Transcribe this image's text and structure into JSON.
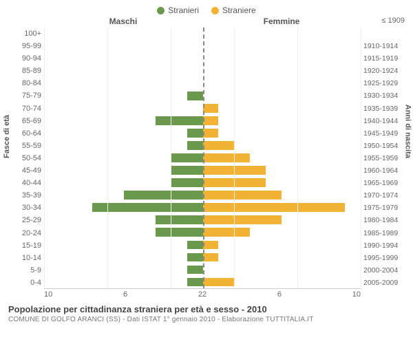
{
  "chart": {
    "type": "population-pyramid",
    "legend": {
      "male": {
        "label": "Stranieri",
        "color": "#6a994e"
      },
      "female": {
        "label": "Straniere",
        "color": "#f2b233"
      }
    },
    "column_headers": {
      "left": "Maschi",
      "right": "Femmine"
    },
    "left_axis_title": "Fasce di età",
    "right_axis_title": "Anni di nascita",
    "xlim": [
      0,
      10
    ],
    "x_ticks_left": [
      "10",
      "6",
      "2"
    ],
    "x_ticks_right": [
      "2",
      "6",
      "10"
    ],
    "grid_color": "#eeeeee",
    "center_line_color": "#888888",
    "background_color": "#ffffff",
    "bar_height_ratio": 0.7,
    "age_groups": [
      "100+",
      "95-99",
      "90-94",
      "85-89",
      "80-84",
      "75-79",
      "70-74",
      "65-69",
      "60-64",
      "55-59",
      "50-54",
      "45-49",
      "40-44",
      "35-39",
      "30-34",
      "25-29",
      "20-24",
      "15-19",
      "10-14",
      "5-9",
      "0-4"
    ],
    "birth_years": [
      "≤ 1909",
      "1910-1914",
      "1915-1919",
      "1920-1924",
      "1925-1929",
      "1930-1934",
      "1935-1939",
      "1940-1944",
      "1945-1949",
      "1950-1954",
      "1955-1959",
      "1960-1964",
      "1965-1969",
      "1970-1974",
      "1975-1979",
      "1980-1984",
      "1985-1989",
      "1990-1994",
      "1995-1999",
      "2000-2004",
      "2005-2009"
    ],
    "male_values": [
      0,
      0,
      0,
      0,
      0,
      1,
      0,
      3,
      1,
      1,
      2,
      2,
      2,
      5,
      7,
      3,
      3,
      1,
      1,
      1,
      1
    ],
    "female_values": [
      0,
      0,
      0,
      0,
      0,
      0,
      1,
      1,
      1,
      2,
      3,
      4,
      4,
      5,
      9,
      5,
      3,
      1,
      1,
      0,
      2
    ]
  },
  "footer": {
    "title": "Popolazione per cittadinanza straniera per età e sesso - 2010",
    "subtitle": "COMUNE DI GOLFO ARANCI (SS) - Dati ISTAT 1° gennaio 2010 - Elaborazione TUTTITALIA.IT"
  }
}
